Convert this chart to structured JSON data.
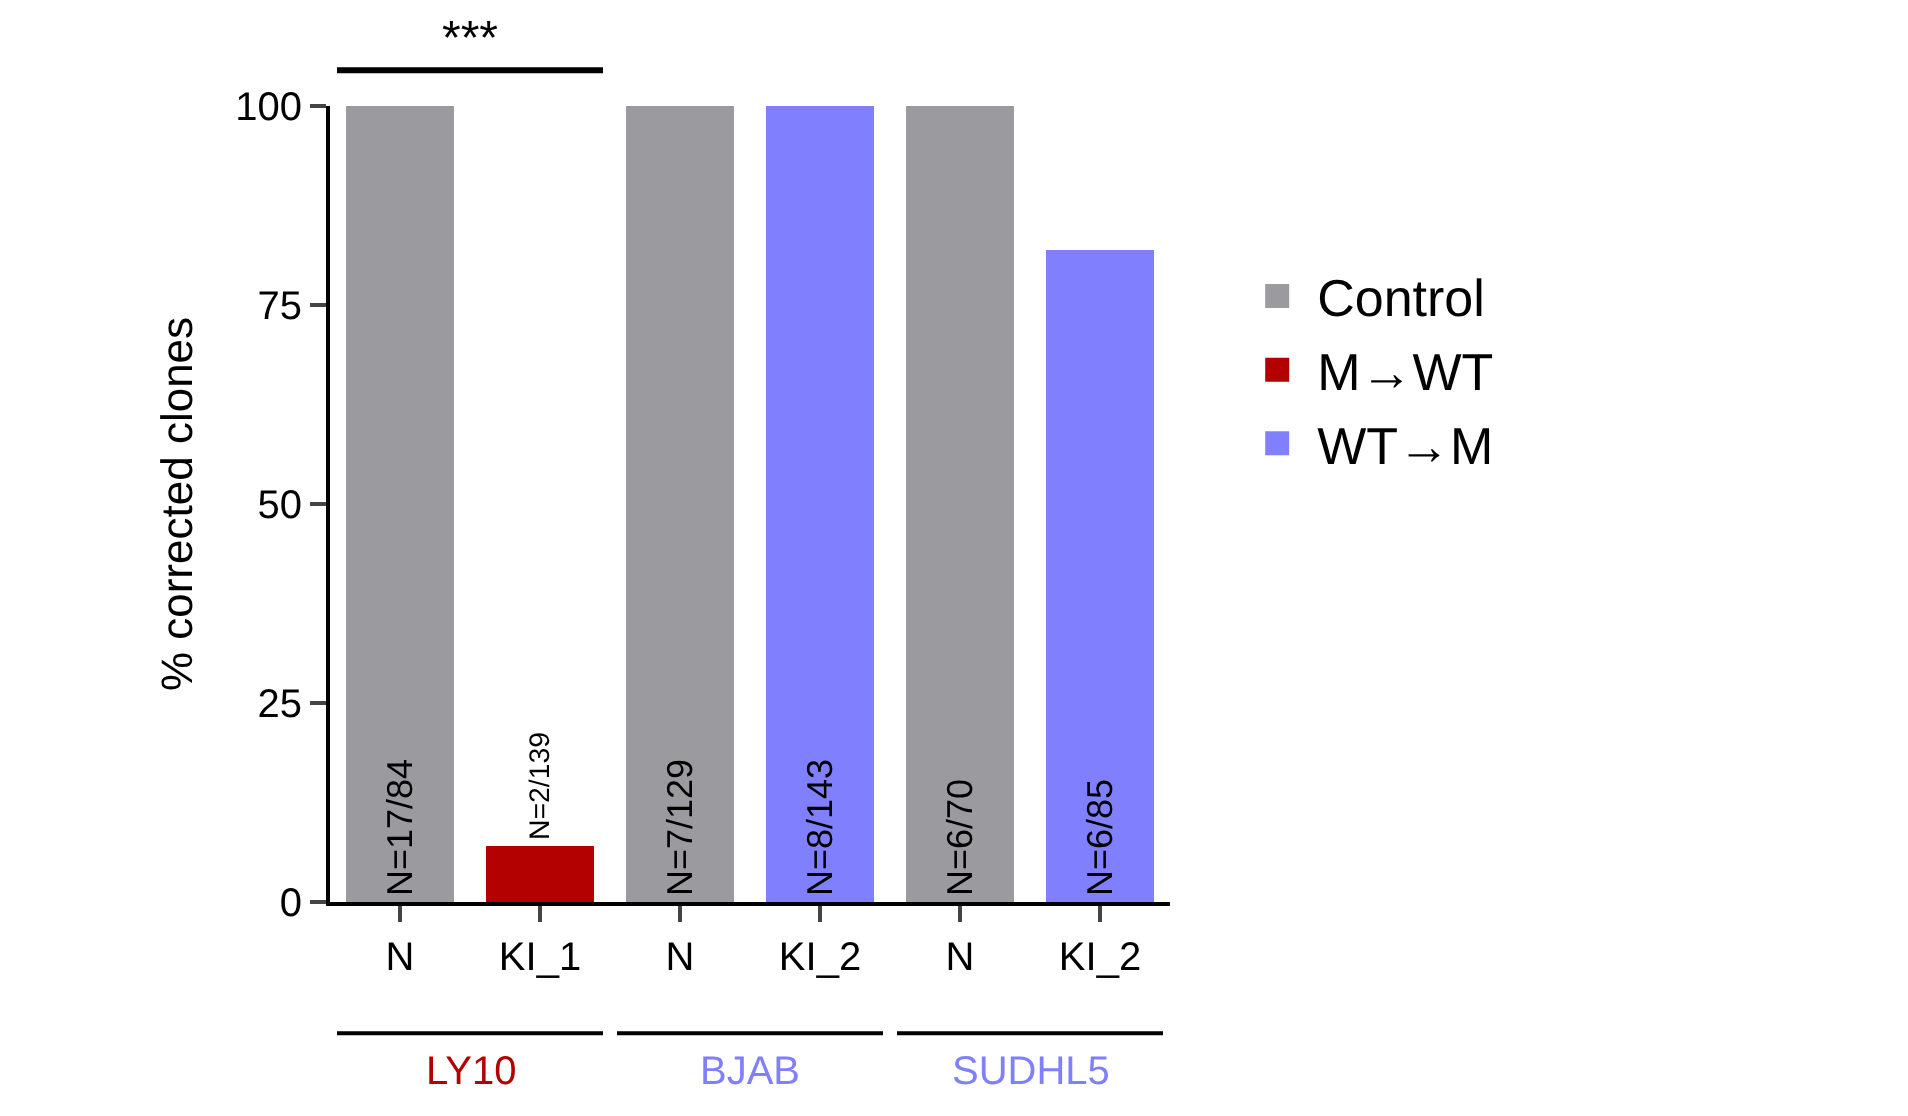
{
  "chart_data": {
    "type": "bar",
    "ylabel": "% corrected clones",
    "categories": [
      "N",
      "KI_1",
      "N",
      "KI_2",
      "N",
      "KI_2"
    ],
    "series": [
      {
        "name": "Control",
        "color": "#9b9b9f",
        "values": [
          100,
          null,
          100,
          null,
          100,
          null
        ],
        "value_labels": [
          "N=17/84",
          null,
          "N=7/129",
          null,
          "N=6/70",
          null
        ]
      },
      {
        "name": "M→WT",
        "color": "#b30000",
        "values": [
          null,
          7,
          null,
          null,
          null,
          null
        ],
        "value_labels": [
          null,
          "N=2/139",
          null,
          null,
          null,
          null
        ]
      },
      {
        "name": "WT→M",
        "color": "#8080ff",
        "values": [
          null,
          null,
          null,
          100,
          null,
          82
        ],
        "value_labels": [
          null,
          null,
          null,
          "N=8/143",
          null,
          "N=6/85"
        ]
      }
    ],
    "ylim": [
      0,
      100
    ],
    "yticks": [
      0,
      25,
      50,
      75,
      100
    ],
    "legend": "right",
    "annotations": [
      "***",
      "LY10",
      "BJAB",
      "SUDHL5"
    ]
  }
}
